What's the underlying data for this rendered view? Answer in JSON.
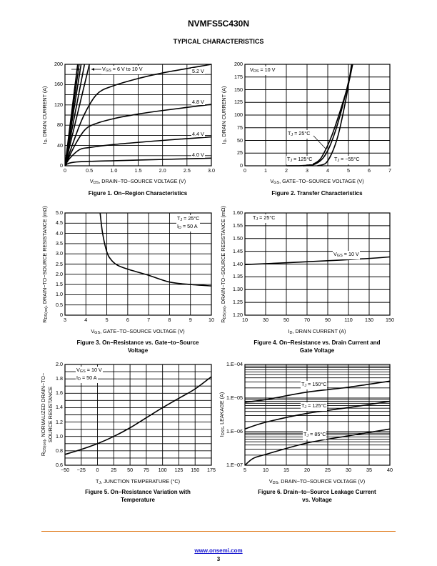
{
  "header": {
    "part_number": "NVMFS5C430N",
    "section_title": "TYPICAL CHARACTERISTICS"
  },
  "footer": {
    "link": "www.onsemi.com",
    "page_number": "3"
  },
  "chart_data": [
    {
      "type": "line",
      "title": "Figure 1. On−Region Characteristics",
      "xlabel": {
        "sym": "V",
        "sub": "DS",
        "text": ", DRAIN−TO−SOURCE VOLTAGE (V)"
      },
      "ylabel": {
        "sym": "I",
        "sub": "D",
        "text": ", DRAIN CURRENT (A)"
      },
      "xlim": [
        0,
        3
      ],
      "ylim": [
        0,
        200
      ],
      "xticks": [
        "0",
        "0.5",
        "1.0",
        "1.5",
        "2.0",
        "2.5",
        "3.0"
      ],
      "xtick_values": [
        0,
        0.5,
        1,
        1.5,
        2,
        2.5,
        3
      ],
      "yticks": [
        "0",
        "40",
        "80",
        "120",
        "160",
        "200"
      ],
      "ytick_values": [
        0,
        40,
        80,
        120,
        160,
        200
      ],
      "xgrid": [
        0,
        0.5,
        1,
        1.5,
        2,
        2.5,
        3
      ],
      "ygrid": [
        0,
        20,
        40,
        60,
        80,
        100,
        120,
        140,
        160,
        180,
        200
      ],
      "annotations": {
        "vgs_range": {
          "sym": "V",
          "sub": "GS",
          "text": " = 6 V to 10 V"
        },
        "l52": "5.2 V",
        "l48": "4.8 V",
        "l44": "4.4 V",
        "l40": "4.0 V"
      },
      "series": [
        {
          "name": "VGS 4.0 V",
          "points": [
            [
              0,
              0
            ],
            [
              0.08,
              5
            ],
            [
              0.3,
              8
            ],
            [
              1,
              10
            ],
            [
              2,
              12.5
            ],
            [
              3,
              15
            ]
          ]
        },
        {
          "name": "VGS 4.4 V",
          "points": [
            [
              0,
              0
            ],
            [
              0.1,
              15
            ],
            [
              0.3,
              32
            ],
            [
              0.5,
              36
            ],
            [
              1,
              42
            ],
            [
              2,
              50
            ],
            [
              3,
              57
            ]
          ]
        },
        {
          "name": "VGS 4.8 V",
          "points": [
            [
              0,
              0
            ],
            [
              0.2,
              40
            ],
            [
              0.4,
              70
            ],
            [
              0.6,
              82
            ],
            [
              1,
              93
            ],
            [
              1.5,
              102
            ],
            [
              2,
              109
            ],
            [
              3,
              121
            ]
          ]
        },
        {
          "name": "VGS 5.2 V",
          "points": [
            [
              0,
              0
            ],
            [
              0.3,
              80
            ],
            [
              0.5,
              120
            ],
            [
              0.7,
              145
            ],
            [
              1,
              158
            ],
            [
              1.5,
              172
            ],
            [
              2,
              183
            ],
            [
              3,
              200
            ]
          ]
        },
        {
          "name": "VGS 6 V",
          "points": [
            [
              0,
              0
            ],
            [
              0.5,
              200
            ]
          ]
        },
        {
          "name": "VGS 7 V",
          "points": [
            [
              0,
              0
            ],
            [
              0.4,
              200
            ]
          ]
        },
        {
          "name": "VGS 8 V",
          "points": [
            [
              0,
              0
            ],
            [
              0.33,
              200
            ]
          ]
        },
        {
          "name": "VGS 9 V",
          "points": [
            [
              0,
              0
            ],
            [
              0.29,
              200
            ]
          ]
        },
        {
          "name": "VGS 10 V",
          "points": [
            [
              0,
              0
            ],
            [
              0.26,
              200
            ]
          ]
        }
      ]
    },
    {
      "type": "line",
      "title": "Figure 2. Transfer Characteristics",
      "xlabel": {
        "sym": "V",
        "sub": "GS",
        "text": ", GATE−TO−SOURCE VOLTAGE (V)"
      },
      "ylabel": {
        "sym": "I",
        "sub": "D",
        "text": ", DRAIN CURRENT (A)"
      },
      "xlim": [
        0,
        7
      ],
      "ylim": [
        0,
        200
      ],
      "xticks": [
        "0",
        "1",
        "2",
        "3",
        "4",
        "5",
        "6",
        "7"
      ],
      "xtick_values": [
        0,
        1,
        2,
        3,
        4,
        5,
        6,
        7
      ],
      "yticks": [
        "0",
        "25",
        "50",
        "75",
        "100",
        "125",
        "150",
        "175",
        "200"
      ],
      "ytick_values": [
        0,
        25,
        50,
        75,
        100,
        125,
        150,
        175,
        200
      ],
      "xgrid": [
        0,
        1,
        2,
        3,
        4,
        5,
        6,
        7
      ],
      "ygrid": [
        0,
        25,
        50,
        75,
        100,
        125,
        150,
        175,
        200
      ],
      "annotations": {
        "vds": {
          "sym": "V",
          "sub": "DS",
          "text": " = 10 V"
        },
        "t25": {
          "sym": "T",
          "sub": "J",
          "text": " = 25°C"
        },
        "t125": {
          "sym": "T",
          "sub": "J",
          "text": " = 125°C"
        },
        "tm55": {
          "sym": "T",
          "sub": "J",
          "text": " = −55°C"
        }
      },
      "series": [
        {
          "name": "TJ = 125°C",
          "points": [
            [
              2,
              0
            ],
            [
              3,
              1
            ],
            [
              3.5,
              8
            ],
            [
              3.8,
              24
            ],
            [
              4.2,
              60
            ],
            [
              4.6,
              108
            ],
            [
              5,
              162
            ],
            [
              5.2,
              200
            ]
          ]
        },
        {
          "name": "TJ = 25°C",
          "points": [
            [
              2.8,
              0
            ],
            [
              3.3,
              2
            ],
            [
              3.7,
              12
            ],
            [
              4,
              30
            ],
            [
              4.3,
              60
            ],
            [
              4.6,
              100
            ],
            [
              4.9,
              148
            ],
            [
              5.2,
              200
            ]
          ]
        },
        {
          "name": "TJ = −55°C",
          "points": [
            [
              3.5,
              0
            ],
            [
              3.9,
              5
            ],
            [
              4.2,
              25
            ],
            [
              4.5,
              60
            ],
            [
              4.8,
              115
            ],
            [
              5,
              160
            ],
            [
              5.15,
              200
            ]
          ]
        }
      ]
    },
    {
      "type": "line",
      "title": "Figure 3. On−Resistance vs. Gate−to−Source Voltage",
      "title_lines": [
        "Figure 3. On−Resistance vs. Gate−to−Source",
        "Voltage"
      ],
      "xlabel": {
        "sym": "V",
        "sub": "GS",
        "text": ", GATE−TO−SOURCE VOLTAGE (V)"
      },
      "ylabel": {
        "sym": "R",
        "sub": "DS(on)",
        "text": ", DRAIN−TO−SOURCE RESISTANCE (mΩ)"
      },
      "xlim": [
        3,
        10
      ],
      "ylim": [
        0,
        5
      ],
      "xticks": [
        "3",
        "4",
        "5",
        "6",
        "7",
        "8",
        "9",
        "10"
      ],
      "xtick_values": [
        3,
        4,
        5,
        6,
        7,
        8,
        9,
        10
      ],
      "yticks": [
        "0",
        "0.5",
        "1.0",
        "1.5",
        "2.0",
        "2.5",
        "3.0",
        "3.5",
        "4.0",
        "4.5",
        "5.0"
      ],
      "ytick_values": [
        0,
        0.5,
        1,
        1.5,
        2,
        2.5,
        3,
        3.5,
        4,
        4.5,
        5
      ],
      "xgrid": [
        3,
        4,
        5,
        6,
        7,
        8,
        9,
        10
      ],
      "ygrid": [
        0,
        0.5,
        1,
        1.5,
        2,
        2.5,
        3,
        3.5,
        4,
        4.5,
        5
      ],
      "annotations": {
        "tj": {
          "sym": "T",
          "sub": "J",
          "text": " = 25°C"
        },
        "id": {
          "sym": "I",
          "sub": "D",
          "text": " = 50 A"
        }
      },
      "series": [
        {
          "name": "RDS(on)",
          "points": [
            [
              4.68,
              5
            ],
            [
              4.8,
              4.0
            ],
            [
              5,
              3.1
            ],
            [
              5.2,
              2.72
            ],
            [
              5.5,
              2.45
            ],
            [
              6,
              2.25
            ],
            [
              7,
              1.95
            ],
            [
              8,
              1.62
            ],
            [
              9,
              1.5
            ],
            [
              10,
              1.43
            ]
          ]
        }
      ]
    },
    {
      "type": "line",
      "title": "Figure 4. On−Resistance vs. Drain Current and Gate Voltage",
      "title_lines": [
        "Figure 4. On−Resistance vs. Drain Current and",
        "Gate Voltage"
      ],
      "xlabel": {
        "sym": "I",
        "sub": "D",
        "text": ", DRAIN CURRENT (A)"
      },
      "ylabel": {
        "sym": "R",
        "sub": "DS(on)",
        "text": ", DRAIN−TO−SOURCE RESISTANCE (mΩ)"
      },
      "xlim": [
        10,
        150
      ],
      "ylim": [
        1.2,
        1.6
      ],
      "xticks": [
        "10",
        "30",
        "50",
        "70",
        "90",
        "110",
        "130",
        "150"
      ],
      "xtick_values": [
        10,
        30,
        50,
        70,
        90,
        110,
        130,
        150
      ],
      "yticks": [
        "1.20",
        "1.25",
        "1.30",
        "1.35",
        "1.40",
        "1.45",
        "1.50",
        "1.55",
        "1.60"
      ],
      "ytick_values": [
        1.2,
        1.25,
        1.3,
        1.35,
        1.4,
        1.45,
        1.5,
        1.55,
        1.6
      ],
      "xgrid": [
        10,
        30,
        50,
        70,
        90,
        110,
        130,
        150
      ],
      "ygrid": [
        1.2,
        1.25,
        1.3,
        1.35,
        1.4,
        1.45,
        1.5,
        1.55,
        1.6
      ],
      "annotations": {
        "tj": {
          "sym": "T",
          "sub": "J",
          "text": " = 25°C"
        },
        "vgs": {
          "sym": "V",
          "sub": "GS",
          "text": " = 10 V"
        }
      },
      "series": [
        {
          "name": "VGS = 10 V",
          "points": [
            [
              10,
              1.398
            ],
            [
              50,
              1.405
            ],
            [
              90,
              1.413
            ],
            [
              130,
              1.422
            ],
            [
              150,
              1.428
            ]
          ]
        }
      ]
    },
    {
      "type": "line",
      "title": "Figure 5. On−Resistance Variation with Temperature",
      "title_lines": [
        "Figure 5. On−Resistance Variation with",
        "Temperature"
      ],
      "xlabel": {
        "sym": "T",
        "sub": "J",
        "text": ", JUNCTION TEMPERATURE (°C)"
      },
      "ylabel": {
        "sym": "R",
        "sub": "DS(on)",
        "text": ", NORMALIZED DRAIN−TO−",
        "line2": "SOURCE RESISTANCE"
      },
      "xlim": [
        -50,
        175
      ],
      "ylim": [
        0.6,
        2.0
      ],
      "xticks": [
        "−50",
        "−25",
        "0",
        "25",
        "50",
        "75",
        "100",
        "125",
        "150",
        "175"
      ],
      "xtick_values": [
        -50,
        -25,
        0,
        25,
        50,
        75,
        100,
        125,
        150,
        175
      ],
      "yticks": [
        "0.6",
        "0.8",
        "1.0",
        "1.2",
        "1.4",
        "1.6",
        "1.8",
        "2.0"
      ],
      "ytick_values": [
        0.6,
        0.8,
        1.0,
        1.2,
        1.4,
        1.6,
        1.8,
        2.0
      ],
      "xgrid": [
        -50,
        -25,
        0,
        25,
        50,
        75,
        100,
        125,
        150,
        175
      ],
      "ygrid": [
        0.6,
        0.7,
        0.8,
        0.9,
        1.0,
        1.1,
        1.2,
        1.3,
        1.4,
        1.5,
        1.6,
        1.7,
        1.8,
        1.9,
        2.0
      ],
      "annotations": {
        "vgs": {
          "sym": "V",
          "sub": "GS",
          "text": " = 10 V"
        },
        "id": {
          "sym": "I",
          "sub": "D",
          "text": " = 50 A"
        }
      },
      "series": [
        {
          "name": "Normalized RDS(on)",
          "points": [
            [
              -50,
              0.75
            ],
            [
              -25,
              0.82
            ],
            [
              0,
              0.9
            ],
            [
              25,
              1.0
            ],
            [
              50,
              1.12
            ],
            [
              75,
              1.26
            ],
            [
              100,
              1.4
            ],
            [
              125,
              1.53
            ],
            [
              150,
              1.66
            ],
            [
              175,
              1.83
            ]
          ]
        }
      ]
    },
    {
      "type": "line",
      "title": "Figure 6. Drain−to−Source Leakage Current vs. Voltage",
      "title_lines": [
        "Figure 6. Drain−to−Source Leakage Current",
        "vs. Voltage"
      ],
      "xlabel": {
        "sym": "V",
        "sub": "DS",
        "text": ", DRAIN−TO−SOURCE VOLTAGE (V)"
      },
      "ylabel": {
        "sym": "I",
        "sub": "DSS",
        "text": ", LEAKAGE (A)"
      },
      "xlim": [
        5,
        40
      ],
      "ylim": [
        1e-07,
        0.0001
      ],
      "yscale": "log",
      "xticks": [
        "5",
        "10",
        "15",
        "20",
        "25",
        "30",
        "35",
        "40"
      ],
      "xtick_values": [
        5,
        10,
        15,
        20,
        25,
        30,
        35,
        40
      ],
      "yticks": [
        "1.E−07",
        "1.E−06",
        "1.E−05",
        "1.E−04"
      ],
      "ytick_values": [
        1e-07,
        1e-06,
        1e-05,
        0.0001
      ],
      "xgrid": [
        5,
        10,
        15,
        20,
        25,
        30,
        35,
        40
      ],
      "annotations": {
        "t150": {
          "sym": "T",
          "sub": "J",
          "text": " = 150°C"
        },
        "t125": {
          "sym": "T",
          "sub": "J",
          "text": " = 125°C"
        },
        "t85": {
          "sym": "T",
          "sub": "J",
          "text": " = 85°C"
        }
      },
      "series": [
        {
          "name": "TJ = 150°C",
          "points": [
            [
              5,
              7.5e-06
            ],
            [
              10,
              9e-06
            ],
            [
              20,
              1.5e-05
            ],
            [
              30,
              2.1e-05
            ],
            [
              40,
              3.2e-05
            ]
          ]
        },
        {
          "name": "TJ = 125°C",
          "points": [
            [
              5,
              1.2e-06
            ],
            [
              10,
              1.9e-06
            ],
            [
              20,
              3.5e-06
            ],
            [
              30,
              5.2e-06
            ],
            [
              40,
              8e-06
            ]
          ]
        },
        {
          "name": "TJ = 85°C",
          "points": [
            [
              5,
              1e-07
            ],
            [
              7,
              1.6e-07
            ],
            [
              10,
              2.1e-07
            ],
            [
              20,
              4.6e-07
            ],
            [
              30,
              7.5e-07
            ],
            [
              40,
              1.2e-06
            ]
          ]
        }
      ]
    }
  ]
}
